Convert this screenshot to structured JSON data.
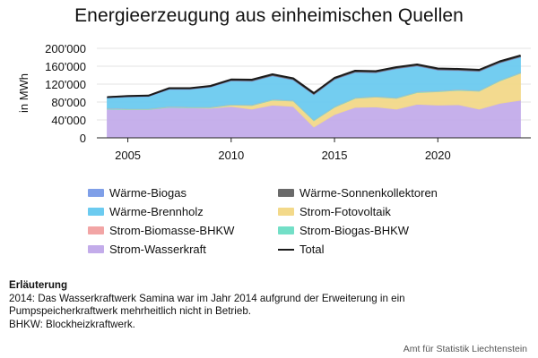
{
  "chart_data": {
    "type": "area",
    "stacked": true,
    "title": "Energieerzeugung aus einheimischen Quellen",
    "ylabel": "in MWh",
    "xlabel": "",
    "ylim": [
      0,
      200000
    ],
    "xlim": [
      2003.5,
      2024.5
    ],
    "yticks": [
      0,
      40000,
      80000,
      120000,
      160000,
      200000
    ],
    "ytick_labels": [
      "0",
      "40'000",
      "80'000",
      "120'000",
      "160'000",
      "200'000"
    ],
    "xticks": [
      2005,
      2010,
      2015,
      2020
    ],
    "xtick_labels": [
      "2005",
      "2010",
      "2015",
      "2020"
    ],
    "grid": "horizontal",
    "legend_position": "bottom",
    "x": [
      2004,
      2005,
      2006,
      2007,
      2008,
      2009,
      2010,
      2011,
      2012,
      2013,
      2014,
      2015,
      2016,
      2017,
      2018,
      2019,
      2020,
      2021,
      2022,
      2023,
      2024
    ],
    "series": [
      {
        "name": "Strom-Wasserkraft",
        "color": "#c3acea",
        "values": [
          64000,
          63000,
          63000,
          68000,
          67000,
          66000,
          70000,
          64000,
          73000,
          70000,
          24000,
          52000,
          68000,
          69000,
          64000,
          75000,
          73000,
          74000,
          64000,
          77000,
          84000
        ]
      },
      {
        "name": "Strom-Fotovoltaik",
        "color": "#f3d98a",
        "values": [
          0,
          0,
          0,
          0,
          0,
          1000,
          3000,
          8000,
          11000,
          12000,
          14000,
          16000,
          20000,
          22000,
          24000,
          26000,
          30000,
          32000,
          40000,
          50000,
          60000
        ]
      },
      {
        "name": "Strom-Biogas-BHKW",
        "color": "#73dfc7",
        "values": [
          1500,
          1500,
          1500,
          1500,
          1500,
          1500,
          1500,
          1500,
          1500,
          1500,
          1500,
          1500,
          1500,
          1500,
          1500,
          1500,
          1500,
          1500,
          1500,
          1500,
          1500
        ]
      },
      {
        "name": "Strom-Biomasse-BHKW",
        "color": "#f2a5a5",
        "values": [
          500,
          500,
          500,
          500,
          500,
          500,
          500,
          500,
          500,
          500,
          500,
          500,
          500,
          500,
          500,
          500,
          500,
          500,
          500,
          500,
          500
        ]
      },
      {
        "name": "Wärme-Brennholz",
        "color": "#6ccbf0",
        "values": [
          23000,
          26000,
          27000,
          38000,
          39000,
          44000,
          52000,
          52000,
          52000,
          45000,
          56000,
          60000,
          56000,
          52000,
          64000,
          57000,
          46000,
          42000,
          42000,
          38000,
          34000
        ]
      },
      {
        "name": "Wärme-Biogas",
        "color": "#7f9fe8",
        "values": [
          1000,
          1000,
          1000,
          1000,
          1000,
          1000,
          1000,
          1000,
          1000,
          1000,
          1000,
          1000,
          1000,
          1000,
          1000,
          1000,
          1000,
          1000,
          1000,
          1000,
          1000
        ]
      },
      {
        "name": "Wärme-Sonnenkollektoren",
        "color": "#6a6a6a",
        "values": [
          1000,
          1500,
          1500,
          2000,
          2000,
          2000,
          2500,
          2500,
          3000,
          3000,
          3000,
          3000,
          3000,
          3000,
          3000,
          3000,
          3000,
          3000,
          3000,
          3000,
          3000
        ]
      }
    ],
    "total": {
      "name": "Total",
      "color": "#1a1a1a",
      "values": [
        91000,
        93500,
        94500,
        111000,
        111000,
        116000,
        130500,
        130000,
        142000,
        133000,
        100000,
        134000,
        150000,
        149000,
        158000,
        164000,
        155000,
        154000,
        152000,
        171000,
        184000
      ]
    }
  },
  "legend": {
    "items": [
      {
        "label": "Wärme-Biogas",
        "color": "#7f9fe8",
        "kind": "area"
      },
      {
        "label": "Wärme-Sonnenkollektoren",
        "color": "#6a6a6a",
        "kind": "area"
      },
      {
        "label": "Wärme-Brennholz",
        "color": "#6ccbf0",
        "kind": "area"
      },
      {
        "label": "Strom-Fotovoltaik",
        "color": "#f3d98a",
        "kind": "area"
      },
      {
        "label": "Strom-Biomasse-BHKW",
        "color": "#f2a5a5",
        "kind": "area"
      },
      {
        "label": "Strom-Biogas-BHKW",
        "color": "#73dfc7",
        "kind": "area"
      },
      {
        "label": "Strom-Wasserkraft",
        "color": "#c3acea",
        "kind": "area"
      },
      {
        "label": "Total",
        "color": "#1a1a1a",
        "kind": "line"
      }
    ]
  },
  "note": {
    "heading": "Erläuterung",
    "lines": [
      "2014: Das Wasserkraftwerk Samina war im Jahr 2014 aufgrund der Erweiterung in ein",
      "Pumpspeicherkraftwerk mehrheitlich nicht in Betrieb.",
      "BHKW: Blockheizkraftwerk."
    ]
  },
  "source": "Amt für Statistik Liechtenstein"
}
